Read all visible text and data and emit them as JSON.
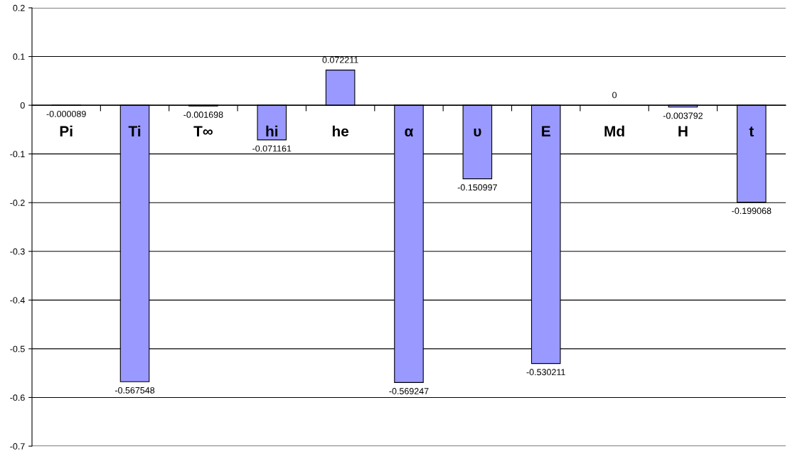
{
  "chart_data": {
    "type": "bar",
    "categories": [
      "Pi",
      "Ti",
      "T∞",
      "hi",
      "he",
      "α",
      "υ",
      "E",
      "Md",
      "H",
      "t"
    ],
    "values": [
      -8.9e-05,
      -0.567548,
      -0.001698,
      -0.071161,
      0.072211,
      -0.569247,
      -0.150997,
      -0.530211,
      0,
      -0.003792,
      -0.199068
    ],
    "value_labels": [
      "-0.000089",
      "-0.567548",
      "-0.001698",
      "-0.071161",
      "0.072211",
      "-0.569247",
      "-0.150997",
      "-0.530211",
      "0",
      "-0.003792",
      "-0.199068"
    ],
    "color": "#9999ff",
    "ylim": [
      -0.7,
      0.2
    ],
    "yticks": [
      -0.7,
      -0.6,
      -0.5,
      -0.4,
      -0.3,
      -0.2,
      -0.1,
      0,
      0.1,
      0.2
    ],
    "grid": "y",
    "legend": false
  }
}
